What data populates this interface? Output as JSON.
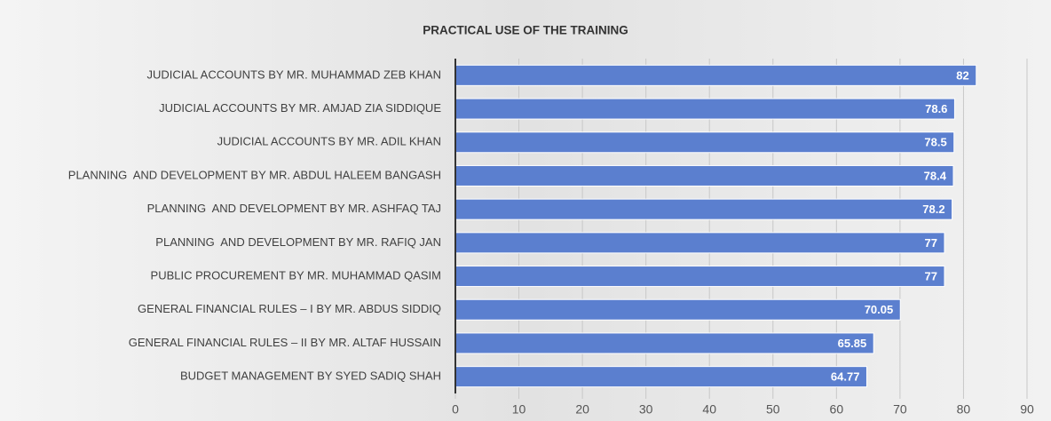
{
  "chart_data": {
    "type": "bar",
    "orientation": "horizontal",
    "title": "PRACTICAL USE OF THE TRAINING",
    "categories": [
      "JUDICIAL ACCOUNTS BY MR. MUHAMMAD ZEB KHAN",
      "JUDICIAL ACCOUNTS BY MR. AMJAD ZIA SIDDIQUE",
      "JUDICIAL ACCOUNTS BY MR. ADIL KHAN",
      "PLANNING  AND DEVELOPMENT BY MR. ABDUL HALEEM BANGASH",
      "PLANNING  AND DEVELOPMENT BY MR. ASHFAQ TAJ",
      "PLANNING  AND DEVELOPMENT BY MR. RAFIQ JAN",
      "PUBLIC PROCUREMENT BY MR. MUHAMMAD QASIM",
      "GENERAL FINANCIAL RULES – I BY MR. ABDUS SIDDIQ",
      "GENERAL FINANCIAL RULES – II BY MR. ALTAF HUSSAIN",
      "BUDGET MANAGEMENT BY SYED SADIQ SHAH"
    ],
    "values": [
      82,
      78.6,
      78.5,
      78.4,
      78.2,
      77,
      77,
      70.05,
      65.85,
      64.77
    ],
    "color": "#5b7fcf",
    "xlim": [
      0,
      90
    ],
    "xticks": [
      0,
      10,
      20,
      30,
      40,
      50,
      60,
      70,
      80,
      90
    ],
    "grid": true
  }
}
